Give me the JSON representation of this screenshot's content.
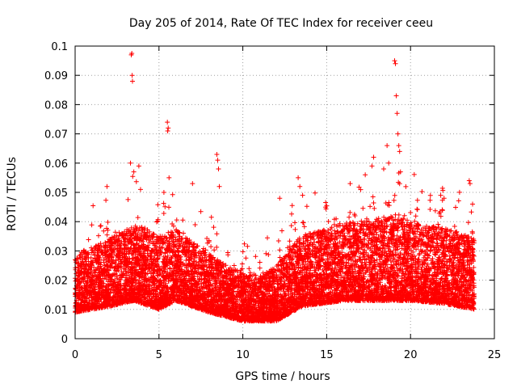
{
  "chart_data": {
    "type": "scatter",
    "title": "Day 205 of 2014, Rate Of TEC Index for receiver ceeu",
    "xlabel": "GPS time / hours",
    "ylabel": "ROTI / TECUs",
    "xlim": [
      0,
      25
    ],
    "ylim": [
      0,
      0.1
    ],
    "grid": true,
    "legend": "none",
    "marker": "plus",
    "color": "#ff0000",
    "xticks": [
      "0",
      "5",
      "10",
      "15",
      "20",
      "25"
    ],
    "yticks": [
      "0",
      "0.01",
      "0.02",
      "0.03",
      "0.04",
      "0.05",
      "0.06",
      "0.07",
      "0.08",
      "0.09",
      "0.1"
    ],
    "series": [
      {
        "name": "ROTI",
        "description": "dense cloud of ROTI samples across the day, baseline ~0.01-0.03 TECU/min",
        "generator": {
          "x_start": 0.0,
          "x_end": 23.8,
          "points_per_hour": 380,
          "seed": 205,
          "baseline_profile": [
            [
              0,
              0.016
            ],
            [
              2,
              0.018
            ],
            [
              3.5,
              0.02
            ],
            [
              5,
              0.017
            ],
            [
              6,
              0.02
            ],
            [
              8,
              0.016
            ],
            [
              10,
              0.013
            ],
            [
              12,
              0.013
            ],
            [
              13.5,
              0.018
            ],
            [
              16,
              0.02
            ],
            [
              18,
              0.02
            ],
            [
              20,
              0.02
            ],
            [
              22,
              0.019
            ],
            [
              23.8,
              0.017
            ]
          ],
          "spread_profile": [
            [
              0,
              0.009
            ],
            [
              4,
              0.012
            ],
            [
              6,
              0.011
            ],
            [
              9,
              0.008
            ],
            [
              11,
              0.007
            ],
            [
              13.5,
              0.011
            ],
            [
              16,
              0.012
            ],
            [
              19,
              0.013
            ],
            [
              23.8,
              0.011
            ]
          ]
        },
        "peaks": [
          {
            "x": 3.35,
            "y": 0.097
          },
          {
            "x": 3.38,
            "y": 0.0975
          },
          {
            "x": 3.4,
            "y": 0.09
          },
          {
            "x": 3.42,
            "y": 0.088
          },
          {
            "x": 3.3,
            "y": 0.06
          },
          {
            "x": 3.5,
            "y": 0.057
          },
          {
            "x": 3.8,
            "y": 0.059
          },
          {
            "x": 3.9,
            "y": 0.051
          },
          {
            "x": 1.9,
            "y": 0.052
          },
          {
            "x": 5.5,
            "y": 0.074
          },
          {
            "x": 5.52,
            "y": 0.071
          },
          {
            "x": 5.55,
            "y": 0.072
          },
          {
            "x": 5.6,
            "y": 0.055
          },
          {
            "x": 7.0,
            "y": 0.053
          },
          {
            "x": 8.45,
            "y": 0.063
          },
          {
            "x": 8.5,
            "y": 0.061
          },
          {
            "x": 8.55,
            "y": 0.058
          },
          {
            "x": 8.6,
            "y": 0.052
          },
          {
            "x": 13.3,
            "y": 0.055
          },
          {
            "x": 13.4,
            "y": 0.052
          },
          {
            "x": 12.2,
            "y": 0.048
          },
          {
            "x": 16.4,
            "y": 0.053
          },
          {
            "x": 17.3,
            "y": 0.056
          },
          {
            "x": 17.7,
            "y": 0.059
          },
          {
            "x": 17.8,
            "y": 0.062
          },
          {
            "x": 18.4,
            "y": 0.058
          },
          {
            "x": 18.6,
            "y": 0.066
          },
          {
            "x": 18.7,
            "y": 0.06
          },
          {
            "x": 19.05,
            "y": 0.095
          },
          {
            "x": 19.1,
            "y": 0.094
          },
          {
            "x": 19.15,
            "y": 0.083
          },
          {
            "x": 19.2,
            "y": 0.077
          },
          {
            "x": 19.25,
            "y": 0.07
          },
          {
            "x": 19.3,
            "y": 0.066
          },
          {
            "x": 19.35,
            "y": 0.064
          },
          {
            "x": 19.4,
            "y": 0.057
          },
          {
            "x": 21.8,
            "y": 0.049
          },
          {
            "x": 22.0,
            "y": 0.048
          },
          {
            "x": 23.5,
            "y": 0.054
          },
          {
            "x": 23.55,
            "y": 0.053
          },
          {
            "x": 23.7,
            "y": 0.046
          }
        ]
      }
    ]
  }
}
